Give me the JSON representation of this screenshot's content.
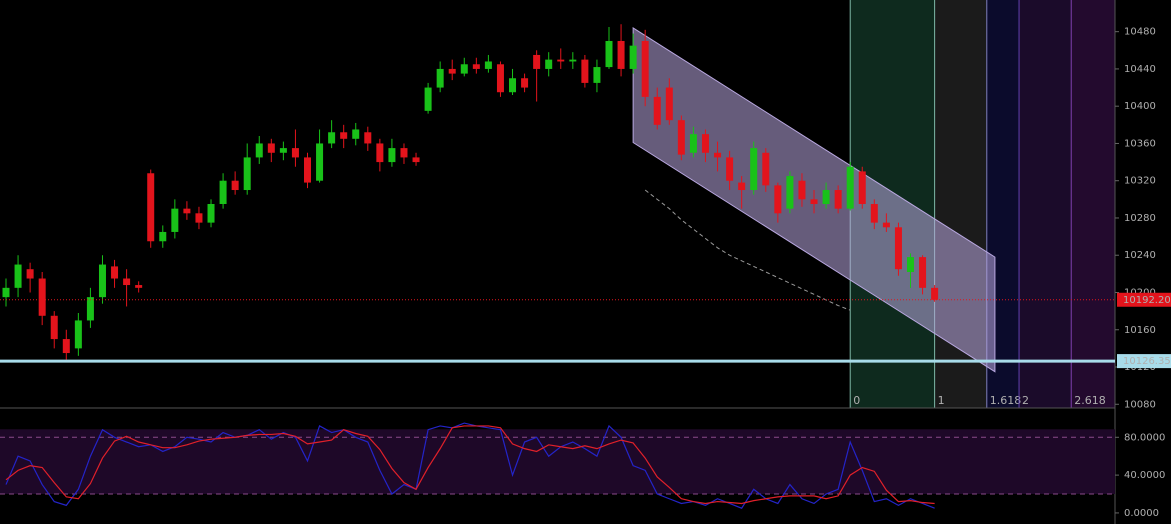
{
  "chart_data": [
    {
      "type": "candlestick",
      "up_color": "#19c219",
      "down_color": "#e3141c",
      "ylim": [
        10076,
        10514
      ],
      "yticks": [
        10080,
        10120,
        10160,
        10200,
        10240,
        10280,
        10320,
        10360,
        10400,
        10440,
        10480
      ],
      "open": [
        10195,
        10205,
        10225,
        10215,
        10175,
        10150,
        10140,
        10170,
        10195,
        10228,
        10215,
        10208,
        10328,
        10255,
        10265,
        10290,
        10285,
        10275,
        10295,
        10320,
        10310,
        10345,
        10360,
        10350,
        10355,
        10345,
        10320,
        10360,
        10372,
        10365,
        10372,
        10360,
        10340,
        10355,
        10345,
        10395,
        10420,
        10440,
        10435,
        10445,
        10440,
        10445,
        10415,
        10430,
        10455,
        10440,
        10450,
        10448,
        10450,
        10425,
        10442,
        10470,
        10440,
        10470,
        10410,
        10420,
        10385,
        10350,
        10370,
        10350,
        10345,
        10318,
        10310,
        10350,
        10315,
        10290,
        10320,
        10300,
        10295,
        10310,
        10290,
        10330,
        10295,
        10275,
        10270,
        10222,
        10238,
        10205
      ],
      "high": [
        10215,
        10240,
        10232,
        10222,
        10180,
        10160,
        10178,
        10205,
        10240,
        10235,
        10225,
        10212,
        10332,
        10272,
        10300,
        10298,
        10292,
        10300,
        10328,
        10330,
        10360,
        10368,
        10365,
        10362,
        10375,
        10350,
        10375,
        10385,
        10380,
        10382,
        10378,
        10365,
        10365,
        10360,
        10350,
        10425,
        10448,
        10450,
        10452,
        10452,
        10455,
        10448,
        10440,
        10435,
        10460,
        10458,
        10462,
        10458,
        10455,
        10450,
        10485,
        10488,
        10478,
        10482,
        10420,
        10430,
        10390,
        10378,
        10375,
        10362,
        10352,
        10325,
        10362,
        10355,
        10318,
        10330,
        10328,
        10310,
        10318,
        10315,
        10340,
        10335,
        10300,
        10285,
        10275,
        10242,
        10240,
        10208
      ],
      "low": [
        10185,
        10195,
        10200,
        10165,
        10140,
        10128,
        10132,
        10162,
        10188,
        10205,
        10185,
        10200,
        10248,
        10248,
        10258,
        10278,
        10268,
        10270,
        10290,
        10305,
        10305,
        10338,
        10340,
        10342,
        10335,
        10312,
        10318,
        10355,
        10355,
        10358,
        10352,
        10330,
        10335,
        10338,
        10336,
        10392,
        10415,
        10428,
        10432,
        10435,
        10436,
        10410,
        10412,
        10415,
        10405,
        10432,
        10440,
        10440,
        10420,
        10415,
        10440,
        10432,
        10435,
        10400,
        10375,
        10380,
        10342,
        10345,
        10340,
        10330,
        10310,
        10290,
        10305,
        10308,
        10275,
        10285,
        10292,
        10285,
        10290,
        10285,
        10288,
        10290,
        10268,
        10265,
        10218,
        10205,
        10198,
        10190
      ],
      "close": [
        10205,
        10230,
        10215,
        10175,
        10150,
        10135,
        10170,
        10195,
        10230,
        10215,
        10208,
        10205,
        10255,
        10265,
        10290,
        10285,
        10275,
        10295,
        10320,
        10310,
        10345,
        10360,
        10350,
        10355,
        10345,
        10318,
        10360,
        10372,
        10365,
        10375,
        10360,
        10340,
        10355,
        10345,
        10340,
        10420,
        10440,
        10435,
        10445,
        10440,
        10448,
        10415,
        10430,
        10420,
        10440,
        10450,
        10448,
        10450,
        10425,
        10442,
        10470,
        10440,
        10465,
        10410,
        10380,
        10385,
        10348,
        10370,
        10350,
        10345,
        10320,
        10310,
        10355,
        10315,
        10285,
        10325,
        10300,
        10295,
        10310,
        10290,
        10335,
        10295,
        10275,
        10270,
        10225,
        10238,
        10205,
        10192.2
      ],
      "dashed_line": {
        "color": "#9a9a9a",
        "values": [
          null,
          null,
          null,
          null,
          null,
          null,
          null,
          null,
          null,
          null,
          null,
          null,
          null,
          null,
          null,
          null,
          null,
          null,
          null,
          null,
          null,
          null,
          null,
          null,
          null,
          null,
          null,
          null,
          null,
          null,
          null,
          null,
          null,
          null,
          null,
          null,
          null,
          null,
          null,
          null,
          null,
          null,
          null,
          null,
          null,
          null,
          null,
          null,
          null,
          null,
          null,
          null,
          null,
          10310,
          10300,
          10290,
          10278,
          10268,
          10258,
          10248,
          10240,
          10234,
          10228,
          10222,
          10216,
          10210,
          10204,
          10198,
          10192,
          10186,
          10181,
          null,
          null,
          null,
          null,
          null,
          null,
          null
        ]
      },
      "channel": {
        "start_index": 52,
        "end_index": 82,
        "upper": [
          10484,
          10238
        ],
        "lower": [
          10361,
          10115
        ],
        "color": "#b9a8e0"
      },
      "fib_time_zones": {
        "start_index": 70,
        "end_index": 77,
        "levels": [
          0,
          1,
          1.618,
          2,
          2.618
        ],
        "line_colors": [
          "#7fb8a8",
          "#7fb8a8",
          "#8080c0",
          "#6040b0",
          "#8040b0"
        ],
        "label_colors": [
          "#7fb8a8",
          "#7fd8b0",
          "#9aa0e0",
          "#8a50d0",
          "#a060d0"
        ],
        "zone_colors": [
          "#0e2a1e",
          "#1b1b1b",
          "#0b0b2c",
          "#1b0b2a",
          "#230a2e"
        ]
      },
      "price_lines": [
        {
          "value": 10192.2,
          "label": "10192.20",
          "color": "#e3141c",
          "text_color": "#ffffff",
          "style": "dotted"
        },
        {
          "value": 10126.35,
          "label": "10126.35",
          "color": "#a8dcea",
          "text_color": "#000000",
          "style": "solid"
        }
      ]
    },
    {
      "type": "line",
      "ylim": [
        -11.7,
        109.9
      ],
      "yticks": [
        {
          "value": 0,
          "label": "0.0000"
        },
        {
          "value": 40,
          "label": "40.0000"
        },
        {
          "value": 80,
          "label": "80.0000"
        }
      ],
      "bands": [
        20,
        80
      ],
      "band_fill": "#1e0828",
      "series": [
        {
          "color": "#2424c8",
          "values": [
            30,
            60,
            55,
            30,
            12,
            8,
            25,
            60,
            88,
            80,
            75,
            70,
            72,
            65,
            70,
            80,
            78,
            75,
            85,
            80,
            82,
            88,
            78,
            85,
            80,
            55,
            92,
            85,
            88,
            80,
            75,
            45,
            20,
            30,
            25,
            88,
            92,
            90,
            95,
            92,
            90,
            88,
            40,
            75,
            80,
            60,
            70,
            75,
            68,
            60,
            92,
            80,
            50,
            45,
            20,
            15,
            10,
            12,
            8,
            15,
            10,
            5,
            25,
            15,
            10,
            30,
            15,
            10,
            20,
            25,
            75,
            45,
            12,
            15,
            8,
            15,
            10,
            5
          ]
        },
        {
          "color": "#e0202a",
          "values": [
            35,
            45,
            50,
            48,
            32,
            17,
            15,
            31,
            58,
            76,
            81,
            75,
            72,
            69,
            69,
            72,
            76,
            78,
            79,
            80,
            82,
            83,
            83,
            84,
            81,
            73,
            75,
            77,
            88,
            84,
            81,
            67,
            47,
            32,
            25,
            48,
            68,
            90,
            92,
            92,
            92,
            90,
            73,
            68,
            65,
            72,
            70,
            68,
            71,
            68,
            73,
            77,
            74,
            58,
            38,
            27,
            15,
            12,
            10,
            12,
            11,
            10,
            13,
            15,
            17,
            18,
            18,
            18,
            15,
            18,
            40,
            48,
            44,
            24,
            12,
            13,
            11,
            10
          ]
        }
      ]
    }
  ]
}
